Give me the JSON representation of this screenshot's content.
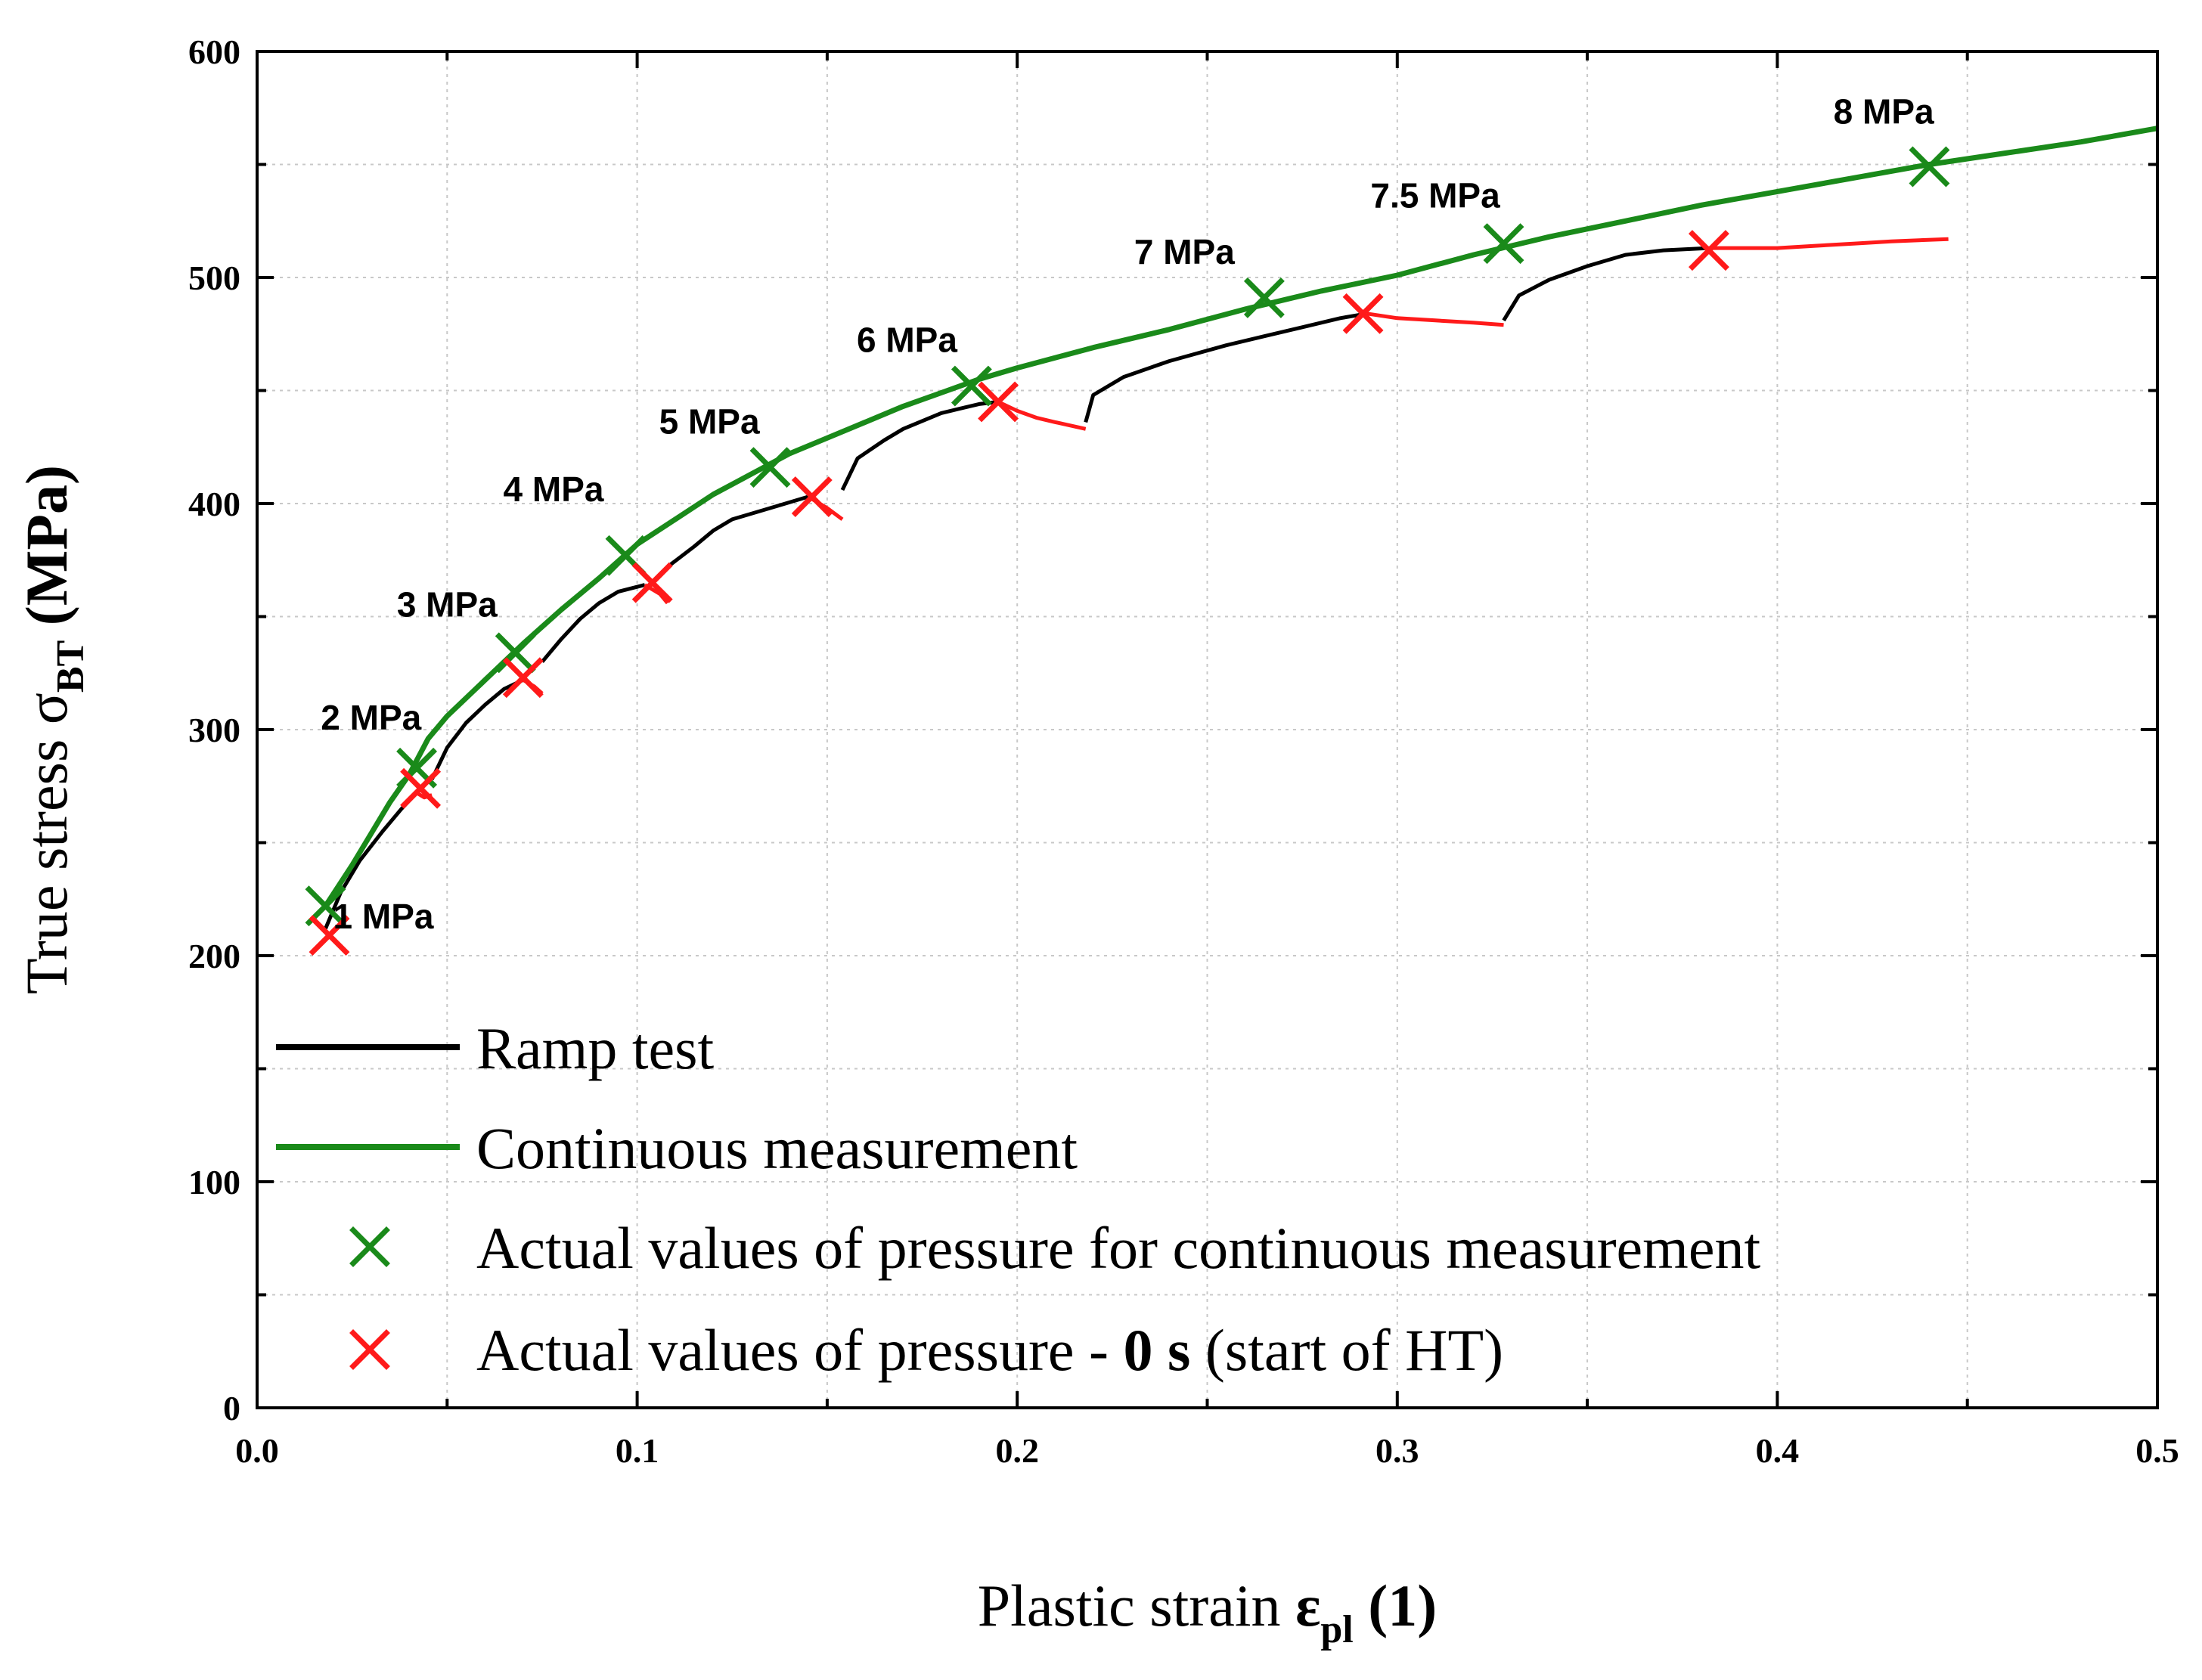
{
  "chart_data": {
    "type": "line",
    "xlabel": {
      "main": "Plastic strain ",
      "symbol": "ε",
      "sub": "pl",
      "unit": " (1)"
    },
    "ylabel": {
      "main": "True stress ",
      "symbol": "σ",
      "sub": "BT",
      "unit": " (MPa)"
    },
    "xlim": [
      0,
      0.5
    ],
    "ylim": [
      0,
      600
    ],
    "xticks": [
      "0.0",
      "0.1",
      "0.2",
      "0.3",
      "0.4",
      "0.5"
    ],
    "yticks": [
      "0",
      "100",
      "200",
      "300",
      "400",
      "500",
      "600"
    ],
    "grid": true,
    "legend_position": "bottom-left",
    "legend": {
      "ramp": "Ramp test",
      "continuous": "Continuous measurement",
      "green_markers": "Actual values of pressure for continuous measurement",
      "red_markers": {
        "pre": "Actual values of pressure - ",
        "bold": "0 s",
        "post": " (start of HT)"
      }
    },
    "colors": {
      "ramp": "#000000",
      "continuous": "#1a8a1a",
      "green_marker": "#1a8a1a",
      "red": "#ff1a1a"
    },
    "continuous_curve": {
      "name": "Continuous measurement",
      "points": [
        [
          0.018,
          222
        ],
        [
          0.025,
          240
        ],
        [
          0.03,
          254
        ],
        [
          0.035,
          268
        ],
        [
          0.04,
          280
        ],
        [
          0.045,
          296
        ],
        [
          0.05,
          306
        ],
        [
          0.06,
          322
        ],
        [
          0.07,
          338
        ],
        [
          0.08,
          353
        ],
        [
          0.09,
          367
        ],
        [
          0.1,
          382
        ],
        [
          0.11,
          393
        ],
        [
          0.12,
          404
        ],
        [
          0.13,
          413
        ],
        [
          0.14,
          422
        ],
        [
          0.15,
          429
        ],
        [
          0.16,
          436
        ],
        [
          0.17,
          443
        ],
        [
          0.18,
          449
        ],
        [
          0.19,
          455
        ],
        [
          0.2,
          460
        ],
        [
          0.22,
          469
        ],
        [
          0.24,
          477
        ],
        [
          0.26,
          486
        ],
        [
          0.28,
          494
        ],
        [
          0.3,
          501
        ],
        [
          0.32,
          510
        ],
        [
          0.34,
          518
        ],
        [
          0.36,
          525
        ],
        [
          0.38,
          532
        ],
        [
          0.4,
          538
        ],
        [
          0.42,
          544
        ],
        [
          0.44,
          550
        ],
        [
          0.46,
          555
        ],
        [
          0.48,
          560
        ],
        [
          0.5,
          566
        ]
      ]
    },
    "ramp_segments": [
      {
        "name": "Ramp test",
        "color": "ramp",
        "points": [
          [
            0.018,
            212
          ],
          [
            0.022,
            228
          ],
          [
            0.027,
            242
          ],
          [
            0.033,
            255
          ],
          [
            0.038,
            265
          ],
          [
            0.042,
            272
          ]
        ]
      },
      {
        "name": "hold",
        "color": "red",
        "points": [
          [
            0.042,
            272
          ],
          [
            0.044,
            270
          ],
          [
            0.046,
            271
          ]
        ]
      },
      {
        "name": "Ramp test",
        "color": "ramp",
        "points": [
          [
            0.046,
            278
          ],
          [
            0.05,
            292
          ],
          [
            0.055,
            303
          ],
          [
            0.06,
            311
          ],
          [
            0.065,
            318
          ],
          [
            0.07,
            322
          ]
        ]
      },
      {
        "name": "hold",
        "color": "red",
        "points": [
          [
            0.07,
            322
          ],
          [
            0.073,
            319
          ],
          [
            0.075,
            316
          ]
        ]
      },
      {
        "name": "Ramp test",
        "color": "ramp",
        "points": [
          [
            0.075,
            330
          ],
          [
            0.08,
            340
          ],
          [
            0.085,
            349
          ],
          [
            0.09,
            356
          ],
          [
            0.095,
            361
          ],
          [
            0.102,
            364
          ]
        ]
      },
      {
        "name": "hold",
        "color": "red",
        "points": [
          [
            0.102,
            364
          ],
          [
            0.106,
            360
          ],
          [
            0.108,
            356
          ]
        ]
      },
      {
        "name": "Ramp test",
        "color": "ramp",
        "points": [
          [
            0.108,
            372
          ],
          [
            0.115,
            381
          ],
          [
            0.12,
            388
          ],
          [
            0.125,
            393
          ],
          [
            0.135,
            398
          ],
          [
            0.145,
            403
          ]
        ]
      },
      {
        "name": "hold",
        "color": "red",
        "points": [
          [
            0.145,
            403
          ],
          [
            0.15,
            398
          ],
          [
            0.154,
            393
          ]
        ]
      },
      {
        "name": "Ramp test",
        "color": "ramp",
        "points": [
          [
            0.154,
            406
          ],
          [
            0.158,
            420
          ],
          [
            0.165,
            428
          ],
          [
            0.17,
            433
          ],
          [
            0.18,
            440
          ],
          [
            0.19,
            444
          ],
          [
            0.195,
            445
          ]
        ]
      },
      {
        "name": "hold",
        "color": "red",
        "points": [
          [
            0.195,
            445
          ],
          [
            0.2,
            441
          ],
          [
            0.205,
            438
          ],
          [
            0.21,
            436
          ],
          [
            0.218,
            433
          ]
        ]
      },
      {
        "name": "Ramp test",
        "color": "ramp",
        "points": [
          [
            0.218,
            436
          ],
          [
            0.22,
            448
          ],
          [
            0.228,
            456
          ],
          [
            0.24,
            463
          ],
          [
            0.255,
            470
          ],
          [
            0.265,
            474
          ],
          [
            0.275,
            478
          ],
          [
            0.285,
            482
          ],
          [
            0.292,
            484
          ]
        ]
      },
      {
        "name": "hold",
        "color": "red",
        "points": [
          [
            0.292,
            484
          ],
          [
            0.3,
            482
          ],
          [
            0.31,
            481
          ],
          [
            0.32,
            480
          ],
          [
            0.328,
            479
          ]
        ]
      },
      {
        "name": "Ramp test",
        "color": "ramp",
        "points": [
          [
            0.328,
            481
          ],
          [
            0.332,
            492
          ],
          [
            0.34,
            499
          ],
          [
            0.35,
            505
          ],
          [
            0.36,
            510
          ],
          [
            0.37,
            512
          ],
          [
            0.382,
            513
          ]
        ]
      },
      {
        "name": "hold",
        "color": "red",
        "points": [
          [
            0.382,
            513
          ],
          [
            0.39,
            513
          ],
          [
            0.4,
            513
          ],
          [
            0.41,
            514
          ],
          [
            0.42,
            515
          ],
          [
            0.43,
            516
          ],
          [
            0.445,
            517
          ]
        ]
      }
    ],
    "green_markers": [
      [
        0.018,
        222
      ],
      [
        0.042,
        283
      ],
      [
        0.068,
        334
      ],
      [
        0.097,
        377
      ],
      [
        0.135,
        416
      ],
      [
        0.188,
        452
      ],
      [
        0.265,
        491
      ],
      [
        0.328,
        515
      ],
      [
        0.44,
        549
      ]
    ],
    "red_markers": [
      [
        0.019,
        209
      ],
      [
        0.043,
        274
      ],
      [
        0.07,
        323
      ],
      [
        0.104,
        365
      ],
      [
        0.146,
        403
      ],
      [
        0.195,
        445
      ],
      [
        0.291,
        484
      ],
      [
        0.382,
        512
      ]
    ],
    "annotations": [
      {
        "text": "1 MPa",
        "x": 0.02,
        "y": 212,
        "anchor": "start"
      },
      {
        "text": "2 MPa",
        "x": 0.03,
        "y": 300,
        "anchor": "middle"
      },
      {
        "text": "3 MPa",
        "x": 0.05,
        "y": 350,
        "anchor": "middle"
      },
      {
        "text": "4 MPa",
        "x": 0.078,
        "y": 401,
        "anchor": "middle"
      },
      {
        "text": "5 MPa",
        "x": 0.119,
        "y": 431,
        "anchor": "middle"
      },
      {
        "text": "6 MPa",
        "x": 0.171,
        "y": 467,
        "anchor": "middle"
      },
      {
        "text": "7 MPa",
        "x": 0.244,
        "y": 506,
        "anchor": "middle"
      },
      {
        "text": "7.5 MPa",
        "x": 0.31,
        "y": 531,
        "anchor": "middle"
      },
      {
        "text": "8 MPa",
        "x": 0.428,
        "y": 568,
        "anchor": "middle"
      }
    ]
  }
}
